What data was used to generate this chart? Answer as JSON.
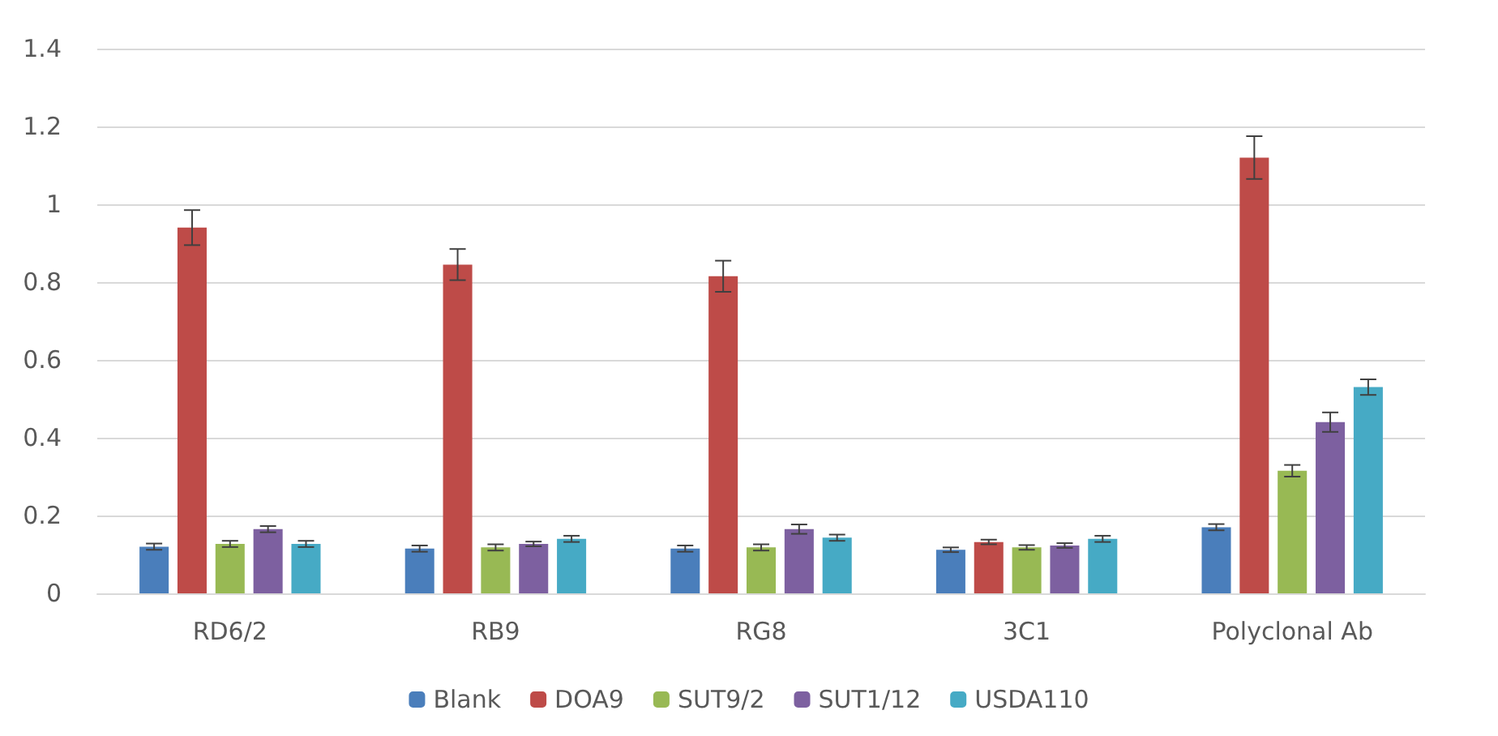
{
  "chart_data": {
    "type": "bar",
    "categories": [
      "RD6/2",
      "RB9",
      "RG8",
      "3C1",
      "Polyclonal Ab"
    ],
    "series": [
      {
        "name": "Blank",
        "color": "#4a7ebb",
        "values": [
          0.12,
          0.115,
          0.115,
          0.112,
          0.17
        ],
        "errors": [
          0.008,
          0.008,
          0.008,
          0.006,
          0.008
        ]
      },
      {
        "name": "DOA9",
        "color": "#be4b48",
        "values": [
          0.94,
          0.845,
          0.815,
          0.132,
          1.12
        ],
        "errors": [
          0.045,
          0.04,
          0.04,
          0.006,
          0.055
        ]
      },
      {
        "name": "SUT9/2",
        "color": "#98b954",
        "values": [
          0.127,
          0.118,
          0.118,
          0.118,
          0.315
        ],
        "errors": [
          0.008,
          0.008,
          0.008,
          0.006,
          0.015
        ]
      },
      {
        "name": "SUT1/12",
        "color": "#7d60a0",
        "values": [
          0.165,
          0.127,
          0.165,
          0.123,
          0.44
        ],
        "errors": [
          0.008,
          0.006,
          0.012,
          0.006,
          0.025
        ]
      },
      {
        "name": "USDA110",
        "color": "#46aac5",
        "values": [
          0.127,
          0.14,
          0.143,
          0.14,
          0.53
        ],
        "errors": [
          0.008,
          0.008,
          0.008,
          0.008,
          0.02
        ]
      }
    ],
    "ylim": [
      0,
      1.4
    ],
    "yticks": [
      0,
      0.2,
      0.4,
      0.6,
      0.8,
      1,
      1.2,
      1.4
    ],
    "grid": "y",
    "legend": "bottom"
  }
}
